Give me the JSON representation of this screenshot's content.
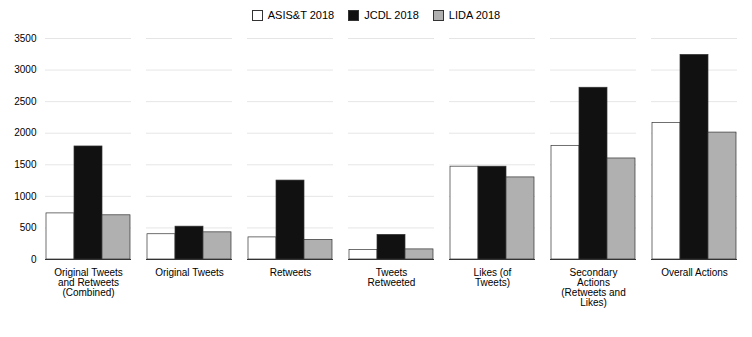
{
  "chart_data": {
    "type": "bar",
    "categories": [
      "Original Tweets\nand Retweets\n(Combined)",
      "Original Tweets",
      "Retweets",
      "Tweets\nRetweeted",
      "Likes (of\nTweets)",
      "Secondary\nActions\n(Retweets and\nLikes)",
      "Overall Actions"
    ],
    "series": [
      {
        "name": "ASIS&T 2018",
        "color": "#ffffff",
        "values": [
          730,
          400,
          350,
          150,
          1470,
          1800,
          2160
        ]
      },
      {
        "name": "JCDL 2018",
        "color": "#111111",
        "values": [
          1790,
          520,
          1250,
          390,
          1470,
          2720,
          3240
        ]
      },
      {
        "name": "LIDA 2018",
        "color": "#b0b0b0",
        "values": [
          700,
          430,
          310,
          160,
          1300,
          1600,
          2010
        ]
      }
    ],
    "ylim": [
      0,
      3500
    ],
    "yticks": [
      0,
      500,
      1000,
      1500,
      2000,
      2500,
      3000,
      3500
    ],
    "grid": true,
    "legend": "upper center"
  }
}
